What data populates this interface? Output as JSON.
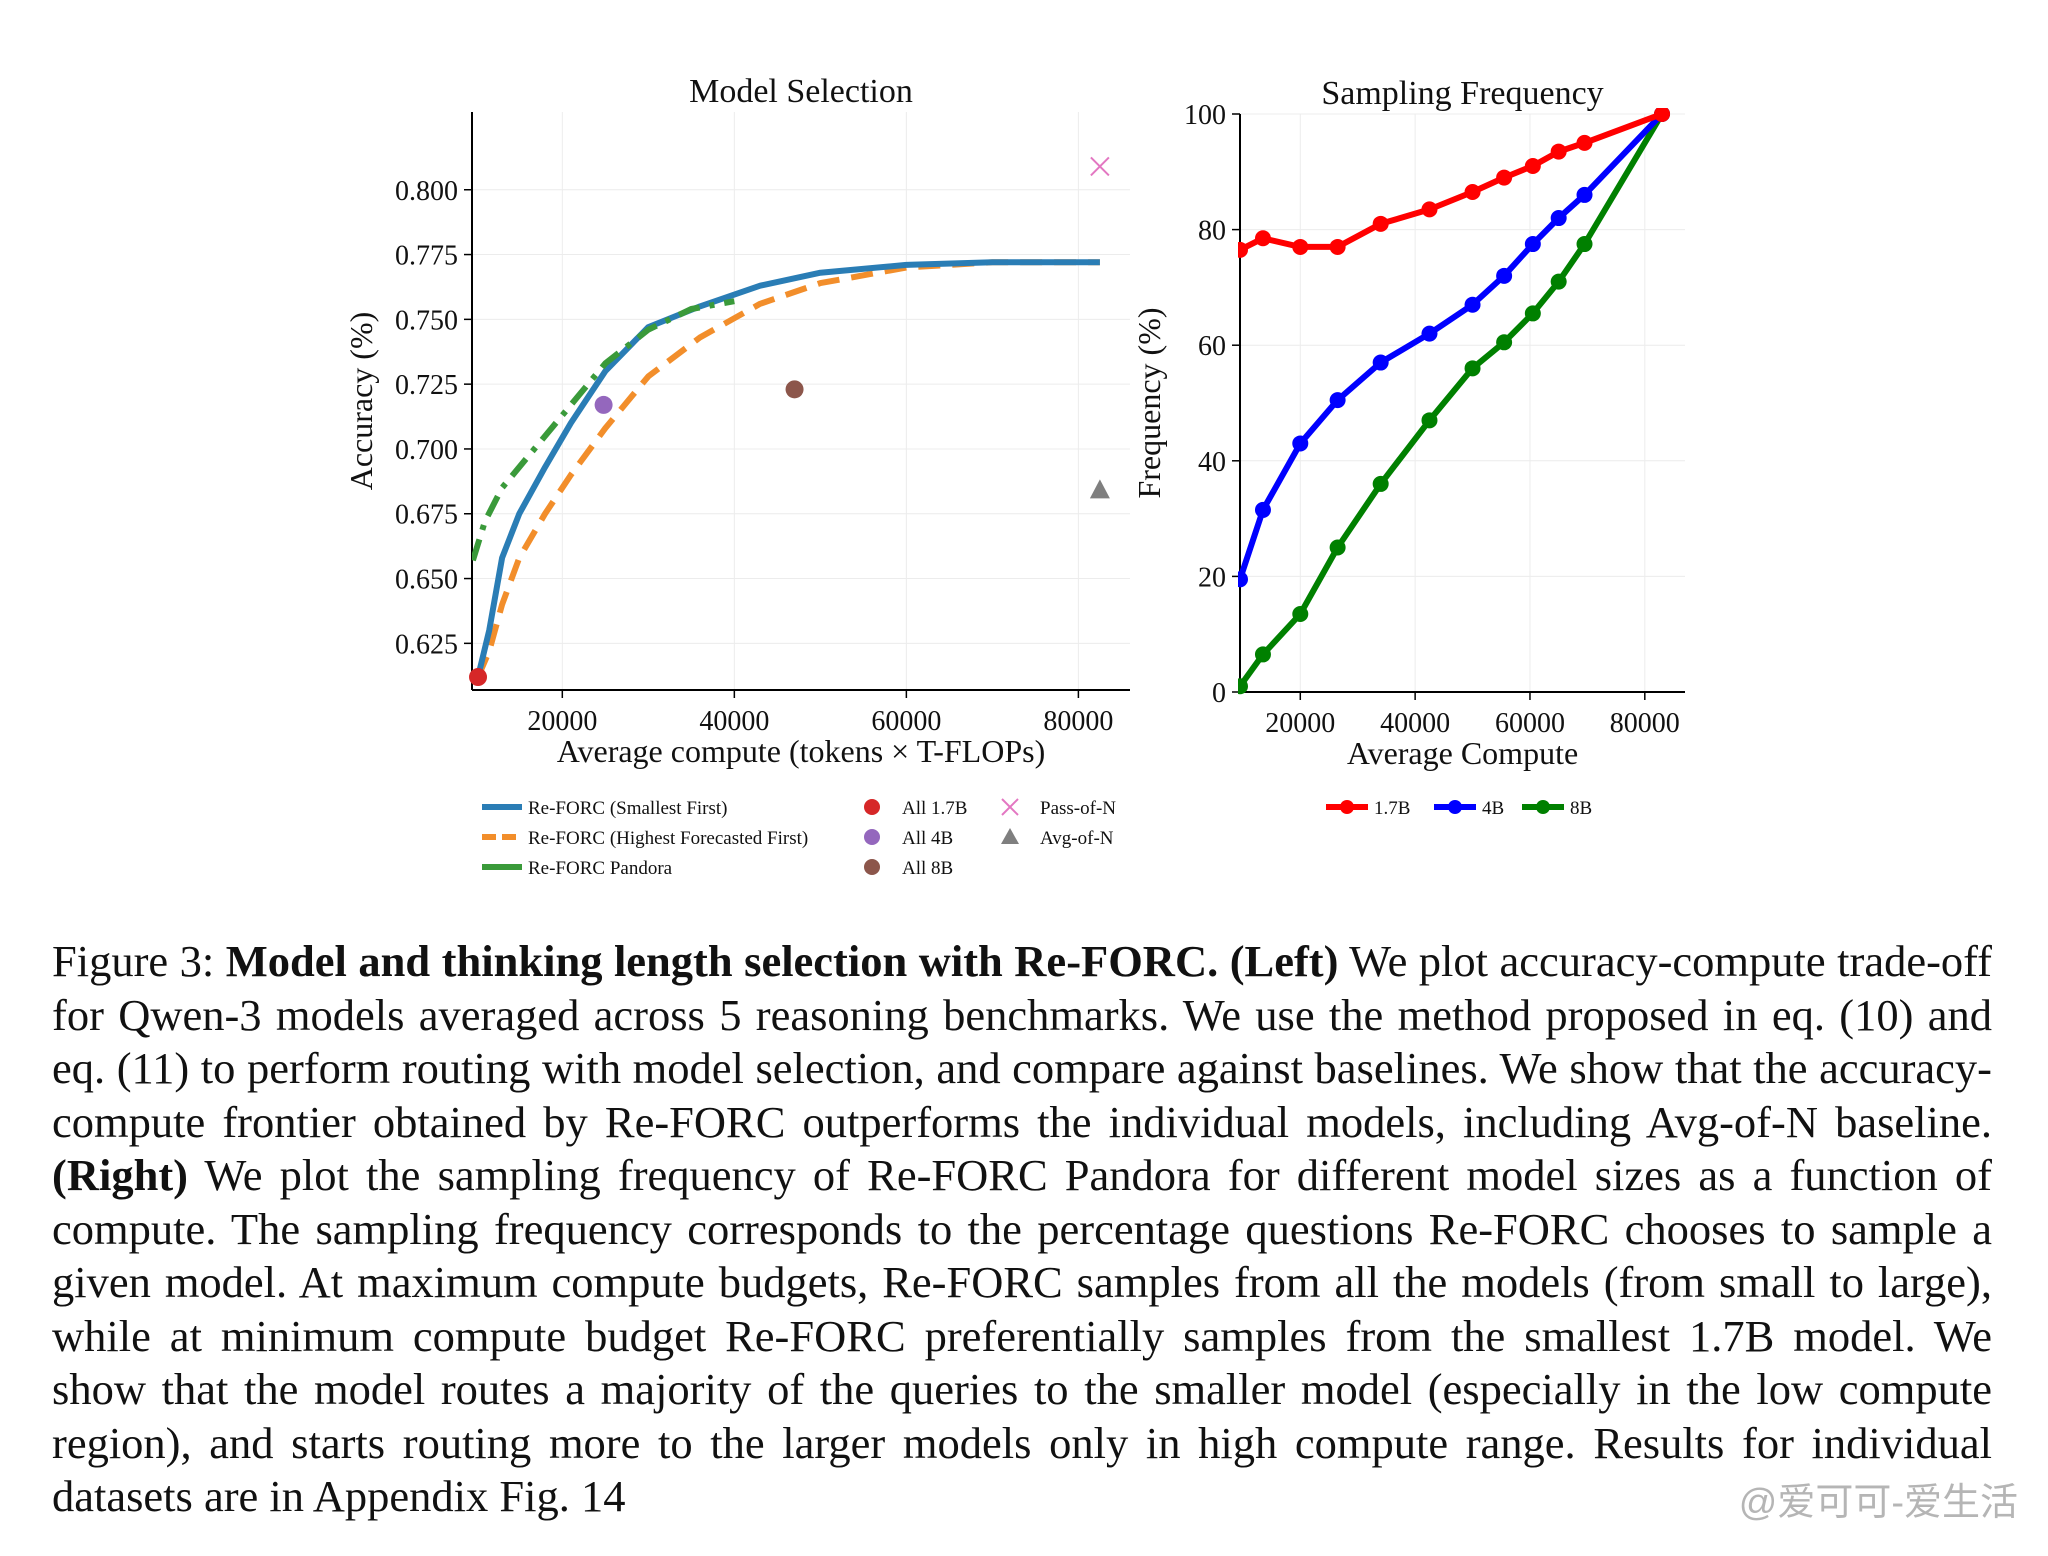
{
  "figure": {
    "left": {
      "title": "Model Selection",
      "xlabel": "Average compute (tokens × T-FLOPs)",
      "ylabel": "Accuracy (%)",
      "legend": [
        {
          "label": "Re-FORC (Smallest First)",
          "kind": "line-solid",
          "color": "#2a7db5"
        },
        {
          "label": "Re-FORC (Highest Forecasted First)",
          "kind": "line-dash",
          "color": "#f28e2b"
        },
        {
          "label": "Re-FORC Pandora",
          "kind": "line-solid",
          "color": "#3a9a3a"
        },
        {
          "label": "All 1.7B",
          "kind": "dot",
          "color": "#d62728"
        },
        {
          "label": "All 4B",
          "kind": "dot",
          "color": "#9467bd"
        },
        {
          "label": "All 8B",
          "kind": "dot",
          "color": "#8c564b"
        },
        {
          "label": "Pass-of-N",
          "kind": "x",
          "color": "#e377c2"
        },
        {
          "label": "Avg-of-N",
          "kind": "triangle",
          "color": "#7f7f7f"
        }
      ]
    },
    "right": {
      "title": "Sampling Frequency",
      "xlabel": "Average Compute",
      "ylabel": "Frequency (%)",
      "legend": [
        {
          "label": "1.7B",
          "color": "#ff0000"
        },
        {
          "label": "4B",
          "color": "#0000ff"
        },
        {
          "label": "8B",
          "color": "#008000"
        }
      ]
    }
  },
  "chart_data": [
    {
      "type": "line",
      "title": "Model Selection",
      "xlabel": "Average compute (tokens × T-FLOPs)",
      "ylabel": "Accuracy (%)",
      "xlim": [
        9500,
        86000
      ],
      "ylim": [
        0.607,
        0.83
      ],
      "xticks": [
        20000,
        40000,
        60000,
        80000
      ],
      "xtick_labels": [
        "20000",
        "40000",
        "60000",
        "80000"
      ],
      "yticks": [
        0.625,
        0.65,
        0.675,
        0.7,
        0.725,
        0.75,
        0.775,
        0.8
      ],
      "ytick_labels": [
        "0.625",
        "0.650",
        "0.675",
        "0.700",
        "0.725",
        "0.750",
        "0.775",
        "0.800"
      ],
      "grid": true,
      "legend_position": "below",
      "series": [
        {
          "name": "Re-FORC (Smallest First)",
          "style": "solid",
          "color": "#2a7db5",
          "x": [
            10200,
            11500,
            13000,
            15000,
            18000,
            21000,
            25000,
            30000,
            36000,
            43000,
            50000,
            60000,
            70000,
            82500
          ],
          "y": [
            0.612,
            0.63,
            0.658,
            0.675,
            0.693,
            0.71,
            0.73,
            0.747,
            0.755,
            0.763,
            0.768,
            0.771,
            0.772,
            0.772
          ]
        },
        {
          "name": "Re-FORC (Highest Forecasted First)",
          "style": "dashed",
          "color": "#f28e2b",
          "x": [
            10200,
            11500,
            13000,
            15000,
            18000,
            21000,
            25000,
            30000,
            36000,
            43000,
            50000,
            60000,
            70000,
            82500
          ],
          "y": [
            0.612,
            0.622,
            0.64,
            0.658,
            0.675,
            0.69,
            0.708,
            0.728,
            0.743,
            0.756,
            0.764,
            0.77,
            0.772,
            0.772
          ]
        },
        {
          "name": "Re-FORC Pandora",
          "style": "dashdot",
          "color": "#3a9a3a",
          "x": [
            9600,
            11000,
            13000,
            16000,
            20000,
            25000,
            30000,
            35000,
            40000
          ],
          "y": [
            0.657,
            0.672,
            0.685,
            0.697,
            0.713,
            0.733,
            0.746,
            0.754,
            0.757
          ]
        }
      ],
      "points": [
        {
          "name": "All 1.7B",
          "x": 10200,
          "y": 0.612,
          "marker": "dot",
          "color": "#d62728"
        },
        {
          "name": "All 4B",
          "x": 24800,
          "y": 0.717,
          "marker": "dot",
          "color": "#9467bd"
        },
        {
          "name": "All 8B",
          "x": 47000,
          "y": 0.723,
          "marker": "dot",
          "color": "#8c564b"
        },
        {
          "name": "Pass-of-N",
          "x": 82500,
          "y": 0.809,
          "marker": "x",
          "color": "#e377c2"
        },
        {
          "name": "Avg-of-N",
          "x": 82500,
          "y": 0.684,
          "marker": "triangle",
          "color": "#7f7f7f"
        }
      ]
    },
    {
      "type": "line",
      "title": "Sampling Frequency",
      "xlabel": "Average Compute",
      "ylabel": "Frequency (%)",
      "xlim": [
        9500,
        87000
      ],
      "ylim": [
        0,
        100
      ],
      "xticks": [
        20000,
        40000,
        60000,
        80000
      ],
      "xtick_labels": [
        "20000",
        "40000",
        "60000",
        "80000"
      ],
      "yticks": [
        0,
        20,
        40,
        60,
        80,
        100
      ],
      "ytick_labels": [
        "0",
        "20",
        "40",
        "60",
        "80",
        "100"
      ],
      "grid": true,
      "legend_position": "below",
      "series": [
        {
          "name": "1.7B",
          "color": "#ff0000",
          "x": [
            9500,
            13500,
            20000,
            26500,
            34000,
            42500,
            50000,
            55500,
            60500,
            65000,
            69500,
            83000
          ],
          "y": [
            76.5,
            78.5,
            77,
            77,
            81,
            83.5,
            86.5,
            89,
            91,
            93.5,
            95,
            100
          ]
        },
        {
          "name": "4B",
          "color": "#0000ff",
          "x": [
            9500,
            13500,
            20000,
            26500,
            34000,
            42500,
            50000,
            55500,
            60500,
            65000,
            69500,
            83000
          ],
          "y": [
            19.5,
            31.5,
            43,
            50.5,
            57,
            62,
            67,
            72,
            77.5,
            82,
            86,
            100
          ]
        },
        {
          "name": "8B",
          "color": "#008000",
          "x": [
            9500,
            13500,
            20000,
            26500,
            34000,
            42500,
            50000,
            55500,
            60500,
            65000,
            69500,
            83000
          ],
          "y": [
            1,
            6.5,
            13.5,
            25,
            36,
            47,
            56,
            60.5,
            65.5,
            71,
            77.5,
            100
          ]
        }
      ]
    }
  ],
  "caption": {
    "label": "Figure 3:",
    "bold_title": "Model and thinking length selection with Re-FORC.",
    "left_tag": "(Left)",
    "text1": "We plot accuracy-compute trade-off for Qwen-3 models averaged across 5 reasoning benchmarks. We use the method proposed in eq. (10) and eq. (11) to perform routing with model selection, and compare against baselines. We show that the accuracy-compute frontier obtained by Re-FORC outperforms the individual models, including Avg-of-N baseline.",
    "right_tag": "(Right)",
    "text2": "We plot the sampling frequency of Re-FORC Pandora for different model sizes as a function of compute. The sampling frequency corresponds to the percentage questions Re-FORC chooses to sample a given model. At maximum compute budgets, Re-FORC samples from all the models (from small to large), while at minimum compute budget Re-FORC preferentially samples from the smallest 1.7B model. We show that the model routes a majority of the queries to the smaller model (especially in the low compute region), and starts routing more to the larger models only in high compute range. Results for individual datasets are in Appendix Fig. 14"
  },
  "watermark": "@爱可可-爱生活"
}
